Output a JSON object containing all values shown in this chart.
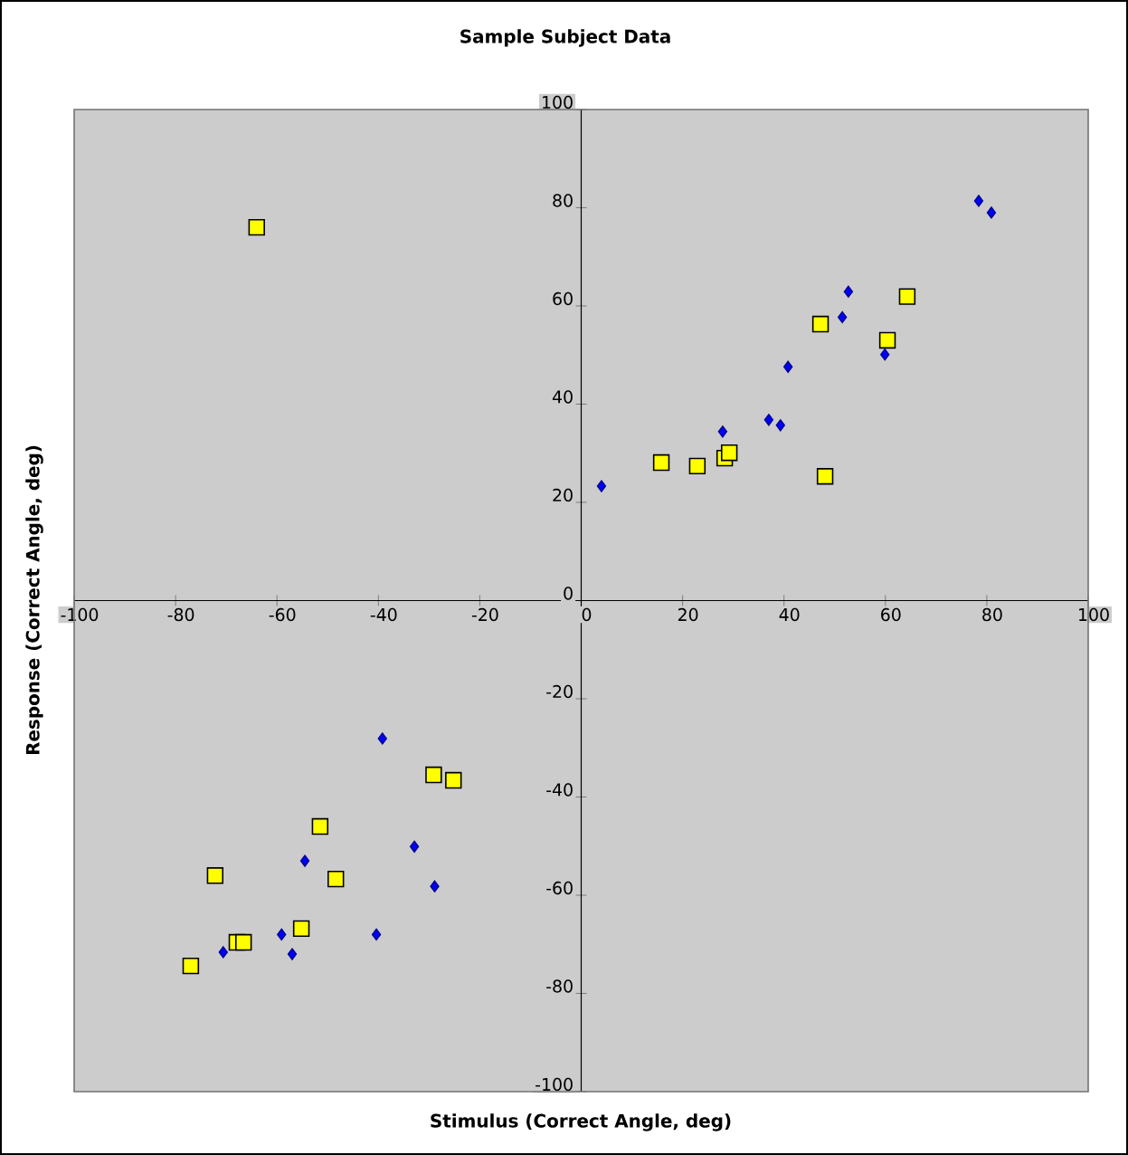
{
  "chart_data": {
    "type": "scatter",
    "title": "Sample Subject Data",
    "xlabel": "Stimulus (Correct Angle, deg)",
    "ylabel": "Response (Correct Angle, deg)",
    "xlim": [
      -100,
      100
    ],
    "ylim": [
      -100,
      100
    ],
    "xticks": [
      -100,
      -80,
      -60,
      -40,
      -20,
      0,
      20,
      40,
      60,
      80,
      100
    ],
    "yticks": [
      -100,
      -80,
      -60,
      -40,
      -20,
      0,
      20,
      40,
      60,
      80,
      100
    ],
    "series": [
      {
        "color": "#0000ff",
        "marker": "diamond",
        "x": [
          4.0,
          27.9,
          37.0,
          39.3,
          40.8,
          51.5,
          52.7,
          59.9,
          78.4,
          80.9,
          -39.2,
          -32.9,
          -54.5,
          -28.9,
          -59.1,
          -40.4,
          -57.0,
          -70.6
        ],
        "values": [
          23.3,
          34.4,
          36.8,
          35.7,
          47.6,
          57.7,
          62.9,
          50.1,
          81.4,
          79.0,
          -28.1,
          -50.1,
          -53.0,
          -58.2,
          -68.0,
          -68.0,
          -72.0,
          -71.6
        ]
      },
      {
        "color": "#ffff00",
        "marker": "square",
        "x": [
          -64.0,
          15.8,
          22.9,
          28.3,
          29.2,
          48.1,
          47.2,
          60.4,
          64.3,
          -29.1,
          -25.2,
          -51.5,
          -72.2,
          -48.4,
          -55.2,
          -67.9,
          -66.6,
          -77.0
        ],
        "values": [
          76.0,
          28.1,
          27.4,
          29.0,
          30.1,
          25.3,
          56.3,
          53.0,
          61.9,
          -35.5,
          -36.6,
          -46.0,
          -56.0,
          -56.7,
          -66.8,
          -69.6,
          -69.6,
          -74.4
        ]
      }
    ]
  }
}
